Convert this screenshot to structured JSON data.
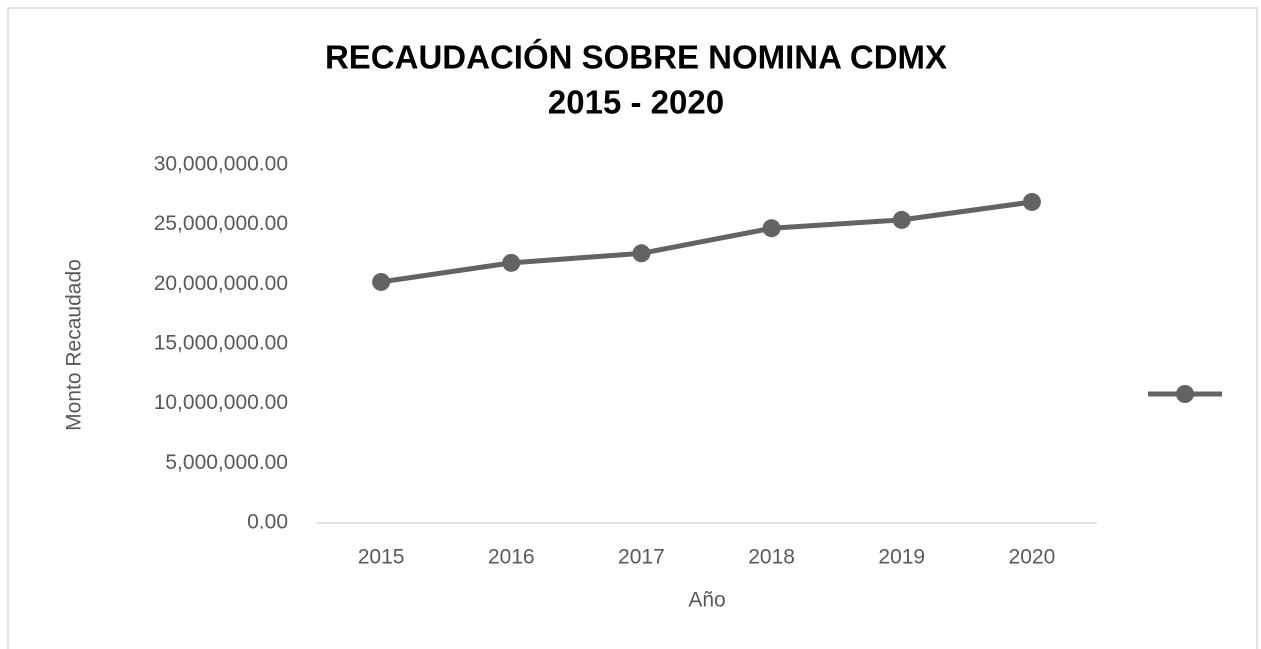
{
  "chart_data": {
    "type": "line",
    "title": [
      "RECAUDACIÓN SOBRE NOMINA CDMX",
      "2015 -  2020"
    ],
    "x_label": "Año",
    "y_label": "Monto Recaudado",
    "categories": [
      "2015",
      "2016",
      "2017",
      "2018",
      "2019",
      "2020"
    ],
    "series": [
      {
        "color": "#636363",
        "values": [
          20200000,
          21800000,
          22600000,
          24700000,
          25400000,
          26900000
        ]
      }
    ],
    "ylim": [
      0,
      30000000
    ],
    "yticks": [
      {
        "value": 0,
        "label": "0.00"
      },
      {
        "value": 5000000,
        "label": "5,000,000.00"
      },
      {
        "value": 10000000,
        "label": "10,000,000.00"
      },
      {
        "value": 15000000,
        "label": "15,000,000.00"
      },
      {
        "value": 20000000,
        "label": "20,000,000.00"
      },
      {
        "value": 25000000,
        "label": "25,000,000.00"
      },
      {
        "value": 30000000,
        "label": "30,000,000.00"
      }
    ],
    "grid": false,
    "legend": "right"
  }
}
